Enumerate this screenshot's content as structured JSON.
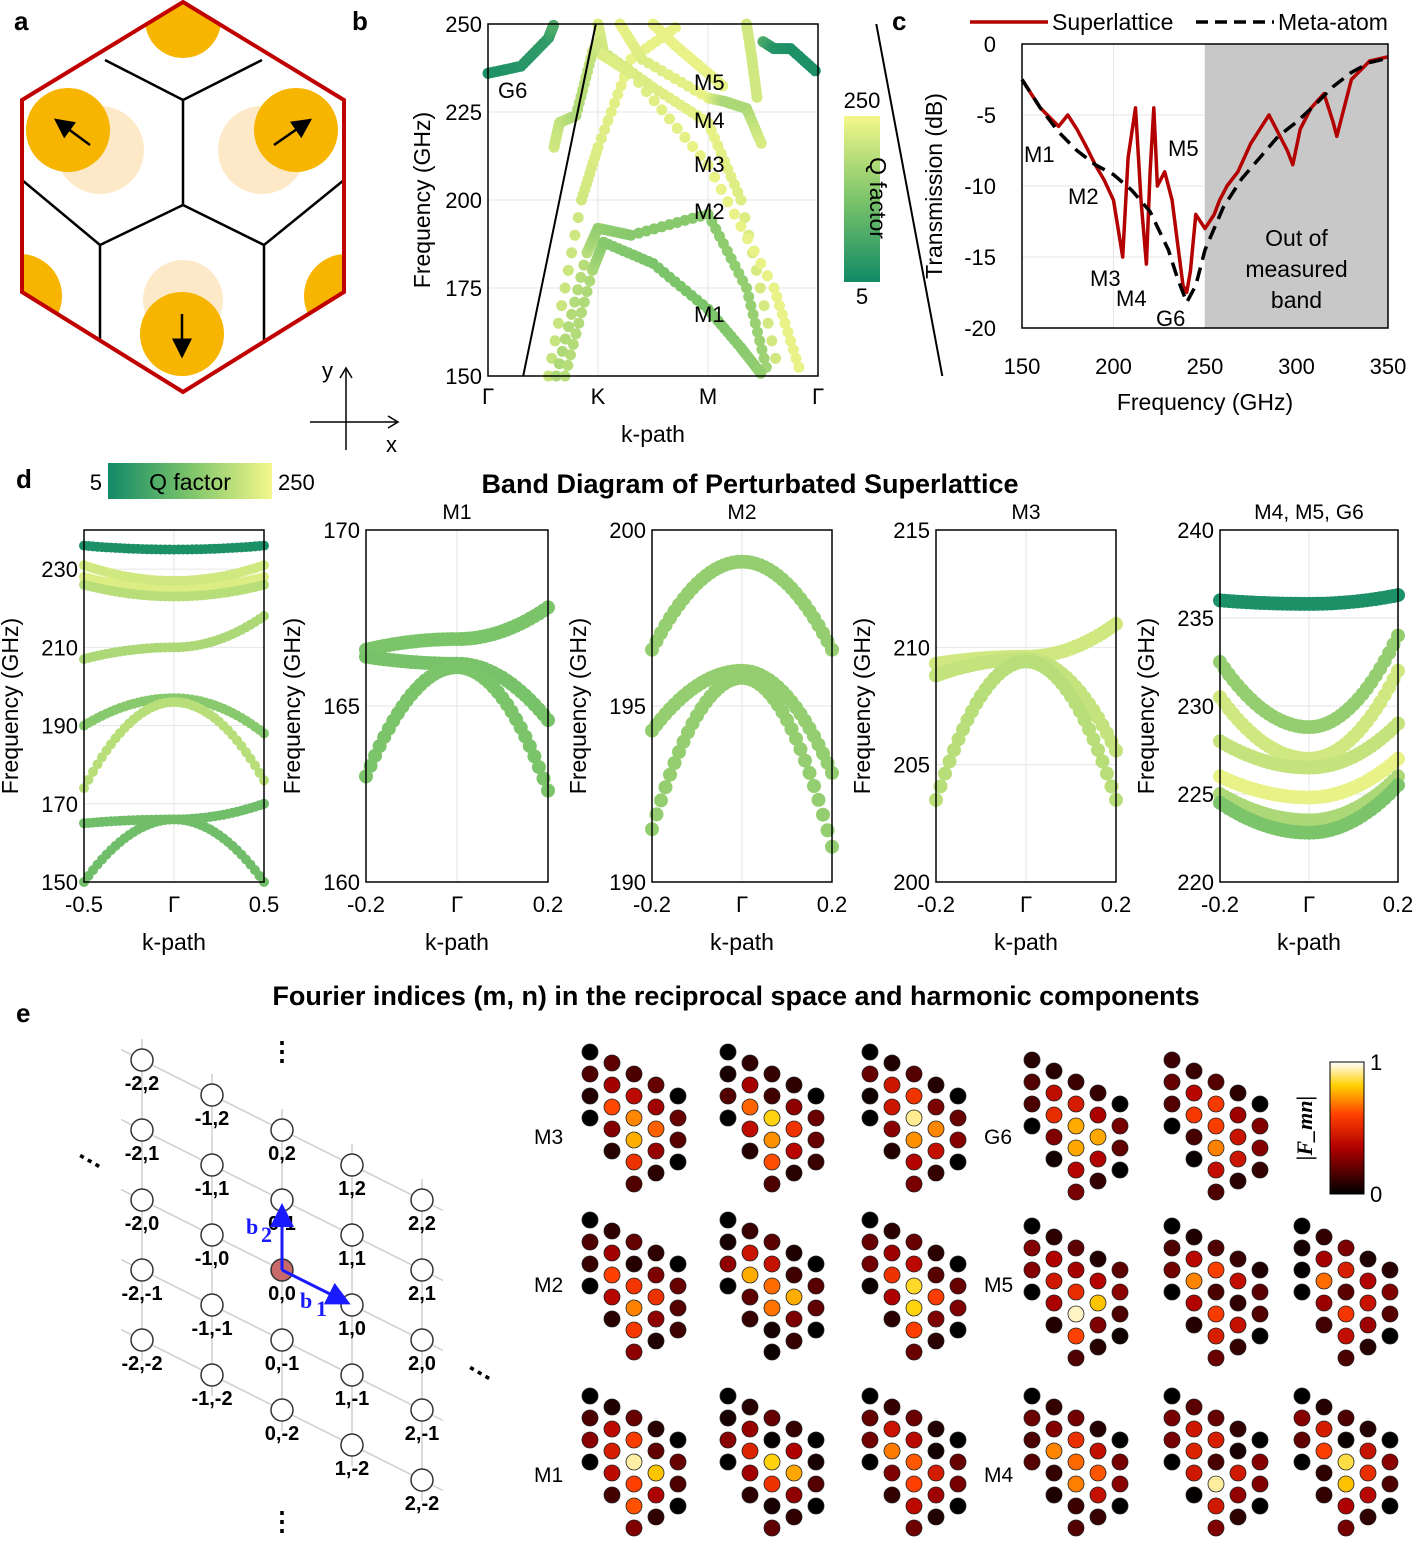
{
  "panels": {
    "a": "a",
    "b": "b",
    "c": "c",
    "d": "d",
    "e": "e"
  },
  "colors": {
    "frame": "#c00000",
    "disk": "#f7b500",
    "disk_faint": "#fde9c7",
    "superlattice": "#b30000",
    "meta_atom": "#000000",
    "shade": "#c8c8c8",
    "q_low": "#118a67",
    "q_high": "#f4f78a",
    "arrow_blue": "#1a1aff"
  },
  "panel_a": {
    "axis_x": "x",
    "axis_y": "y",
    "disk_arrows": [
      "up-left",
      "up-right",
      "down"
    ]
  },
  "chart_data": [
    {
      "id": "b",
      "type": "scatter",
      "xlabel": "k-path",
      "ylabel": "Frequency (GHz)",
      "xticks": [
        "Γ",
        "K",
        "M",
        "Γ"
      ],
      "ylim": [
        150,
        250
      ],
      "yticks": [
        150,
        175,
        200,
        225,
        250
      ],
      "colorbar": {
        "label": "Q factor",
        "min": "5",
        "max": "250"
      },
      "mode_labels": [
        "G6",
        "M5",
        "M4",
        "M3",
        "M2",
        "M1"
      ],
      "mode_freqs": {
        "M1": 169,
        "M2": 196,
        "M3": 210,
        "M4": 222,
        "M5": 229,
        "G6": 235
      },
      "light_line": [
        [
          0.32,
          150
        ],
        [
          0.98,
          250
        ],
        [
          3.53,
          250
        ],
        [
          4.13,
          150
        ]
      ]
    },
    {
      "id": "c",
      "type": "line",
      "xlabel": "Frequency (GHz)",
      "ylabel": "Transmission (dB)",
      "xlim": [
        150,
        350
      ],
      "ylim": [
        -20,
        0
      ],
      "xticks": [
        150,
        200,
        250,
        300,
        350
      ],
      "yticks": [
        0,
        -5,
        -10,
        -15,
        -20
      ],
      "legend": [
        "Superlattice",
        "Meta-atom"
      ],
      "shaded_region": {
        "from": 250,
        "to": 350,
        "label_lines": [
          "Out of",
          "measured",
          "band"
        ]
      },
      "mode_labels": [
        "M1",
        "M2",
        "M3",
        "M4",
        "M5",
        "G6"
      ],
      "series": [
        {
          "name": "Superlattice",
          "x": [
            150,
            160,
            170,
            175,
            180,
            185,
            190,
            195,
            200,
            205,
            208,
            212,
            215,
            218,
            220,
            222,
            224,
            228,
            232,
            235,
            238,
            240,
            242,
            245,
            250,
            255,
            258,
            262,
            268,
            275,
            285,
            295,
            298,
            302,
            308,
            315,
            320,
            322,
            330,
            340,
            350
          ],
          "y": [
            -2.5,
            -4.5,
            -5.8,
            -5.0,
            -6.0,
            -7.2,
            -8.5,
            -9.6,
            -11,
            -15,
            -8,
            -4.5,
            -11,
            -15.5,
            -9,
            -4.5,
            -10,
            -9,
            -11,
            -14,
            -17,
            -17.5,
            -16,
            -12,
            -13,
            -12,
            -11,
            -10,
            -9,
            -7,
            -5,
            -7.5,
            -8.5,
            -6,
            -4.5,
            -3.5,
            -5.5,
            -6.5,
            -2.5,
            -1.2,
            -0.9
          ]
        },
        {
          "name": "Meta-atom",
          "x": [
            150,
            160,
            170,
            180,
            190,
            200,
            210,
            220,
            230,
            235,
            240,
            245,
            250,
            260,
            270,
            280,
            290,
            300,
            310,
            320,
            330,
            340,
            350
          ],
          "y": [
            -2.5,
            -4.5,
            -6.2,
            -7.5,
            -8.5,
            -9.2,
            -10.3,
            -11.8,
            -14.5,
            -16.5,
            -18.2,
            -17,
            -14.5,
            -11.5,
            -9.5,
            -8,
            -6.5,
            -5.5,
            -4.3,
            -3,
            -2,
            -1.3,
            -1
          ]
        }
      ]
    },
    {
      "id": "d",
      "type": "scatter",
      "title": "Band Diagram of Perturbated Superlattice",
      "colorbar": {
        "label": "Q factor",
        "min": "5",
        "max": "250"
      },
      "xlabel": "k-path",
      "ylabel": "Frequency (GHz)",
      "subplots": [
        {
          "name": "",
          "xticks": [
            "-0.5",
            "Γ",
            "0.5"
          ],
          "ylim": [
            150,
            240
          ],
          "yticks": [
            150,
            170,
            190,
            210,
            230
          ]
        },
        {
          "name": "M1",
          "xticks": [
            "-0.2",
            "Γ",
            "0.2"
          ],
          "ylim": [
            160,
            170
          ],
          "yticks": [
            160,
            165,
            170
          ]
        },
        {
          "name": "M2",
          "xticks": [
            "-0.2",
            "Γ",
            "0.2"
          ],
          "ylim": [
            190,
            200
          ],
          "yticks": [
            190,
            195,
            200
          ]
        },
        {
          "name": "M3",
          "xticks": [
            "-0.2",
            "Γ",
            "0.2"
          ],
          "ylim": [
            200,
            215
          ],
          "yticks": [
            200,
            205,
            210,
            215
          ]
        },
        {
          "name": "M4, M5, G6",
          "xticks": [
            "-0.2",
            "Γ",
            "0.2"
          ],
          "ylim": [
            220,
            240
          ],
          "yticks": [
            220,
            225,
            230,
            235,
            240
          ]
        }
      ]
    },
    {
      "id": "e",
      "type": "heatmap",
      "title": "Fourier indices (m, n) in the reciprocal space and harmonic components",
      "colorbar": {
        "label": "|F_mn|",
        "min": "0",
        "max": "1"
      },
      "lattice_labels": [
        "-2,2",
        "-1,2",
        "0,2",
        "1,2",
        "2,2",
        "-2,1",
        "-1,1",
        "0,1",
        "1,1",
        "2,1",
        "-2,0",
        "-1,0",
        "0,0",
        "1,0",
        "2,0",
        "-2,-1",
        "-1,-1",
        "0,-1",
        "1,-1",
        "2,-1",
        "-2,-2",
        "-1,-2",
        "0,-2",
        "1,-2",
        "2,-2"
      ],
      "vectors": {
        "b1": "b",
        "b1_sub": "1",
        "b2": "b",
        "b2_sub": "2"
      },
      "row_labels_left": [
        "M3",
        "M2",
        "M1"
      ],
      "row_labels_right": [
        "G6",
        "M5",
        "M4"
      ],
      "ellipsis": "⋮"
    }
  ]
}
